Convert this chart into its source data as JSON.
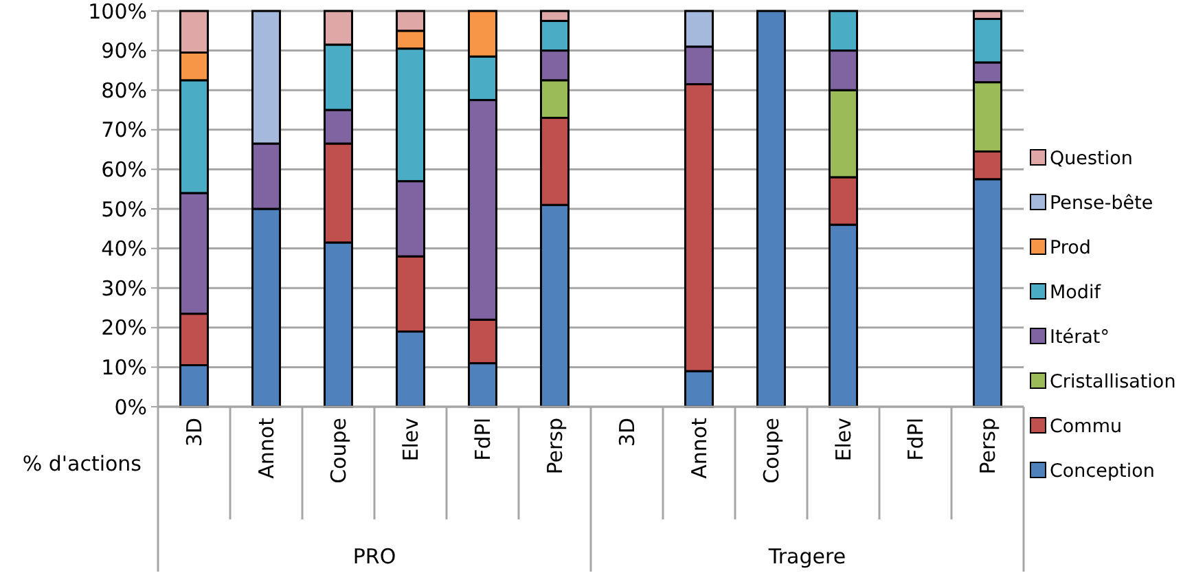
{
  "chart_data": {
    "type": "bar",
    "stacked": true,
    "xlabel": "% d'actions",
    "categories": [
      "3D",
      "Annot",
      "Coupe",
      "Elev",
      "FdPl",
      "Persp",
      "3D",
      "Annot",
      "Coupe",
      "Elev",
      "FdPl",
      "Persp"
    ],
    "annotations": [
      "PRO",
      "Tragere"
    ],
    "series": [
      {
        "name": "Conception",
        "color": "#4f81bd",
        "values": [
          10.5,
          50,
          41.5,
          19,
          11,
          51,
          null,
          9,
          100,
          46,
          null,
          57.5
        ]
      },
      {
        "name": "Commu",
        "color": "#c0504d",
        "values": [
          13,
          null,
          25,
          19,
          11,
          22,
          null,
          72.5,
          null,
          12,
          null,
          7
        ]
      },
      {
        "name": "Cristallisation",
        "color": "#9bbb59",
        "values": [
          null,
          null,
          null,
          null,
          null,
          9.5,
          null,
          null,
          null,
          22,
          null,
          17.5
        ]
      },
      {
        "name": "Itérat°",
        "color": "#8064a2",
        "values": [
          30.5,
          16.5,
          8.5,
          19,
          55.5,
          7.5,
          null,
          9.5,
          null,
          10,
          null,
          5
        ]
      },
      {
        "name": "Modif",
        "color": "#4bacc6",
        "values": [
          28.5,
          null,
          16.5,
          33.5,
          11,
          7.5,
          null,
          null,
          null,
          10,
          null,
          11
        ]
      },
      {
        "name": "Prod",
        "color": "#f79646",
        "values": [
          7,
          null,
          null,
          4.5,
          11.5,
          null,
          null,
          null,
          null,
          null,
          null,
          null
        ]
      },
      {
        "name": "Pense-bête",
        "color": "#a5b9dc",
        "values": [
          null,
          33.5,
          null,
          null,
          null,
          null,
          null,
          9,
          null,
          null,
          null,
          null
        ]
      },
      {
        "name": "Question",
        "color": "#dfa7a6",
        "values": [
          10.5,
          null,
          8.5,
          5,
          null,
          2.5,
          null,
          null,
          null,
          null,
          null,
          2
        ]
      }
    ],
    "ylim": [
      0,
      100
    ],
    "yticks": [
      {
        "value": 0,
        "label": "0%"
      },
      {
        "value": 10,
        "label": "10%"
      },
      {
        "value": 20,
        "label": "20%"
      },
      {
        "value": 30,
        "label": "30%"
      },
      {
        "value": 40,
        "label": "40%"
      },
      {
        "value": 50,
        "label": "50%"
      },
      {
        "value": 60,
        "label": "60%"
      },
      {
        "value": 70,
        "label": "70%"
      },
      {
        "value": 80,
        "label": "80%"
      },
      {
        "value": 90,
        "label": "90%"
      },
      {
        "value": 100,
        "label": "100%"
      }
    ],
    "grid": "y",
    "legend": "right"
  }
}
